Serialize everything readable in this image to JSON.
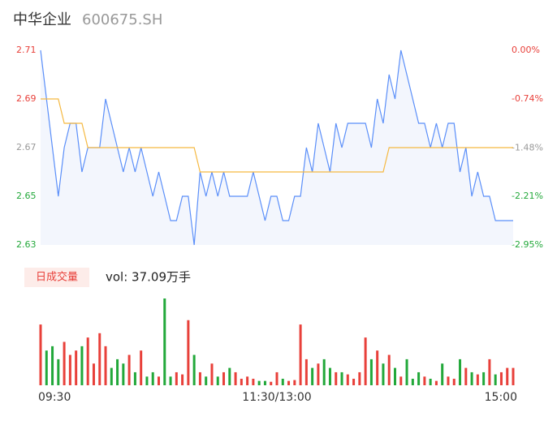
{
  "chart_data": {
    "type": "line",
    "title": "中华企业",
    "subtitle": "600675.SH",
    "x": [
      0,
      3,
      6,
      9,
      12,
      15,
      18,
      21,
      24,
      27,
      30,
      33,
      36,
      39,
      42,
      45,
      48,
      51,
      54,
      57,
      60,
      63,
      66,
      69,
      72,
      75,
      78,
      81,
      84,
      87,
      90,
      93,
      96,
      99,
      102,
      105,
      108,
      111,
      114,
      117,
      120,
      123,
      126,
      129,
      132,
      135,
      138,
      141,
      144,
      147,
      150,
      153,
      156,
      159,
      162,
      165,
      168,
      171,
      174,
      177,
      180,
      183,
      186,
      189,
      192,
      195,
      198,
      201,
      204,
      207,
      210,
      213,
      216,
      219,
      222,
      225,
      228,
      231,
      234,
      237,
      240
    ],
    "series": [
      {
        "color": "#5b8ff9",
        "values": [
          2.71,
          2.69,
          2.67,
          2.65,
          2.67,
          2.68,
          2.68,
          2.66,
          2.67,
          2.67,
          2.67,
          2.69,
          2.68,
          2.67,
          2.66,
          2.67,
          2.66,
          2.67,
          2.66,
          2.65,
          2.66,
          2.65,
          2.64,
          2.64,
          2.65,
          2.65,
          2.63,
          2.66,
          2.65,
          2.66,
          2.65,
          2.66,
          2.65,
          2.65,
          2.65,
          2.65,
          2.66,
          2.65,
          2.64,
          2.65,
          2.65,
          2.64,
          2.64,
          2.65,
          2.65,
          2.67,
          2.66,
          2.68,
          2.67,
          2.66,
          2.68,
          2.67,
          2.68,
          2.68,
          2.68,
          2.68,
          2.67,
          2.69,
          2.68,
          2.7,
          2.69,
          2.71,
          2.7,
          2.69,
          2.68,
          2.68,
          2.67,
          2.68,
          2.67,
          2.68,
          2.68,
          2.66,
          2.67,
          2.65,
          2.66,
          2.65,
          2.65,
          2.64,
          2.64,
          2.64,
          2.64
        ]
      },
      {
        "color": "#f5b942",
        "values": [
          2.69,
          2.69,
          2.69,
          2.69,
          2.68,
          2.68,
          2.68,
          2.68,
          2.67,
          2.67,
          2.67,
          2.67,
          2.67,
          2.67,
          2.67,
          2.67,
          2.67,
          2.67,
          2.67,
          2.67,
          2.67,
          2.67,
          2.67,
          2.67,
          2.67,
          2.67,
          2.67,
          2.66,
          2.66,
          2.66,
          2.66,
          2.66,
          2.66,
          2.66,
          2.66,
          2.66,
          2.66,
          2.66,
          2.66,
          2.66,
          2.66,
          2.66,
          2.66,
          2.66,
          2.66,
          2.66,
          2.66,
          2.66,
          2.66,
          2.66,
          2.66,
          2.66,
          2.66,
          2.66,
          2.66,
          2.66,
          2.66,
          2.66,
          2.66,
          2.67,
          2.67,
          2.67,
          2.67,
          2.67,
          2.67,
          2.67,
          2.67,
          2.67,
          2.67,
          2.67,
          2.67,
          2.67,
          2.67,
          2.67,
          2.67,
          2.67,
          2.67,
          2.67,
          2.67,
          2.67,
          2.67
        ]
      }
    ],
    "xlim": [
      0,
      240
    ],
    "xticks": [
      {
        "value": 0,
        "label": "09:30"
      },
      {
        "value": 120,
        "label": "11:30/13:00"
      },
      {
        "value": 240,
        "label": "15:00"
      }
    ],
    "ylim": [
      2.63,
      2.71
    ],
    "yticks": [
      2.71,
      2.69,
      2.67,
      2.65,
      2.63
    ],
    "ytick_colors": [
      "#e8403a",
      "#e8403a",
      "#999999",
      "#22a83a",
      "#22a83a"
    ],
    "y2lim": [
      -2.95,
      0
    ],
    "y2ticks": [
      {
        "value": 0,
        "label": "0.00%"
      },
      {
        "value": -0.74,
        "label": "-0.74%"
      },
      {
        "value": -1.48,
        "label": "-1.48%"
      },
      {
        "value": -2.21,
        "label": "-2.21%"
      },
      {
        "value": -2.95,
        "label": "-2.95%"
      }
    ],
    "volume": {
      "button": "日成交量",
      "summary": "vol: 37.09万手",
      "up_color": "#e8403a",
      "down_color": "#22a83a",
      "values": [
        14000,
        8000,
        9000,
        6000,
        10000,
        7000,
        8000,
        9000,
        11000,
        5000,
        12000,
        9000,
        4000,
        6000,
        5000,
        7000,
        3000,
        8000,
        2000,
        3000,
        2000,
        20000,
        2000,
        3000,
        2500,
        15000,
        7000,
        3000,
        2000,
        5000,
        2000,
        3000,
        4000,
        3000,
        1500,
        2000,
        1500,
        1000,
        1000,
        800,
        3000,
        1500,
        1000,
        1200,
        14000,
        6000,
        4000,
        5000,
        6000,
        4000,
        3000,
        3000,
        2500,
        1500,
        3000,
        11000,
        6000,
        8000,
        5000,
        7000,
        4000,
        2000,
        6000,
        1500,
        3000,
        2000,
        1500,
        1000,
        5000,
        2000,
        1500,
        6000,
        4000,
        3000,
        2500,
        3000,
        6000,
        2500,
        3000,
        4000,
        4000
      ]
    }
  }
}
